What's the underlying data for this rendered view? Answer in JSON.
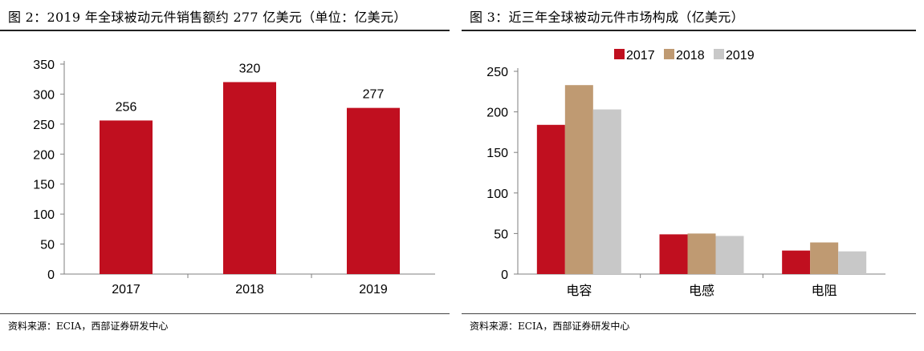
{
  "colors": {
    "red": "#c00f1f",
    "tan": "#bf9a72",
    "gray": "#c8c8c8",
    "axis": "#7f7f7f"
  },
  "left": {
    "title": "图 2：2019 年全球被动元件销售额约 277 亿美元（单位：亿美元）",
    "source": "资料来源：ECIA，西部证券研发中心"
  },
  "right": {
    "title": "图 3：近三年全球被动元件市场构成（亿美元）",
    "source": "资料来源：ECIA，西部证券研发中心"
  },
  "chart_data": [
    {
      "type": "bar",
      "categories": [
        "2017",
        "2018",
        "2019"
      ],
      "values": [
        256,
        320,
        277
      ],
      "data_labels": [
        "256",
        "320",
        "277"
      ],
      "ylim": [
        0,
        350
      ],
      "yticks": [
        0,
        50,
        100,
        150,
        200,
        250,
        300,
        350
      ],
      "grid": false,
      "bar_color": "#c00f1f"
    },
    {
      "type": "bar",
      "categories": [
        "电容",
        "电感",
        "电阻"
      ],
      "series": [
        {
          "name": "2017",
          "values": [
            184,
            49,
            29
          ],
          "color": "#c00f1f"
        },
        {
          "name": "2018",
          "values": [
            233,
            50,
            39
          ],
          "color": "#bf9a72"
        },
        {
          "name": "2019",
          "values": [
            203,
            47,
            28
          ],
          "color": "#c8c8c8"
        }
      ],
      "ylim": [
        0,
        250
      ],
      "yticks": [
        0,
        50,
        100,
        150,
        200,
        250
      ],
      "grid": false,
      "legend": "top"
    }
  ]
}
